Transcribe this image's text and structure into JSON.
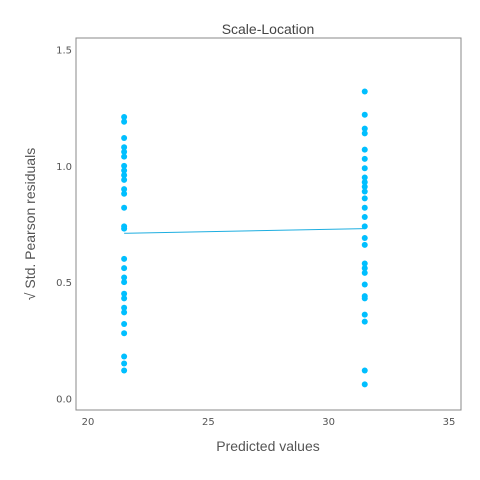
{
  "chart_data": {
    "type": "scatter",
    "title": "Scale-Location",
    "xlabel": "Predicted values",
    "ylabel": "√ Std. Pearson residuals",
    "xlim": [
      19.5,
      35.5
    ],
    "ylim": [
      -0.05,
      1.55
    ],
    "x_ticks": [
      20,
      25,
      30,
      35
    ],
    "x_tick_labels": [
      "20",
      "25",
      "30",
      "35"
    ],
    "y_ticks": [
      0.0,
      0.5,
      1.0,
      1.5
    ],
    "y_tick_labels": [
      "0.0",
      "0.5",
      "1.0",
      "1.5"
    ],
    "grid": false,
    "point_color": "#00BFFF",
    "line_color": "#1EAEE0",
    "series": [
      {
        "points": [
          [
            21.5,
            1.21
          ],
          [
            21.5,
            1.19
          ],
          [
            21.5,
            1.12
          ],
          [
            21.5,
            1.08
          ],
          [
            21.5,
            1.06
          ],
          [
            21.5,
            1.04
          ],
          [
            21.5,
            1.0
          ],
          [
            21.5,
            0.98
          ],
          [
            21.5,
            0.96
          ],
          [
            21.5,
            0.94
          ],
          [
            21.5,
            0.9
          ],
          [
            21.5,
            0.88
          ],
          [
            21.5,
            0.82
          ],
          [
            21.5,
            0.74
          ],
          [
            21.5,
            0.73
          ],
          [
            21.5,
            0.6
          ],
          [
            21.5,
            0.56
          ],
          [
            21.5,
            0.52
          ],
          [
            21.5,
            0.5
          ],
          [
            21.5,
            0.45
          ],
          [
            21.5,
            0.43
          ],
          [
            21.5,
            0.39
          ],
          [
            21.5,
            0.37
          ],
          [
            21.5,
            0.32
          ],
          [
            21.5,
            0.28
          ],
          [
            21.5,
            0.18
          ],
          [
            21.5,
            0.15
          ],
          [
            21.5,
            0.12
          ],
          [
            31.5,
            1.32
          ],
          [
            31.5,
            1.22
          ],
          [
            31.5,
            1.16
          ],
          [
            31.5,
            1.14
          ],
          [
            31.5,
            1.07
          ],
          [
            31.5,
            1.03
          ],
          [
            31.5,
            0.99
          ],
          [
            31.5,
            0.95
          ],
          [
            31.5,
            0.93
          ],
          [
            31.5,
            0.91
          ],
          [
            31.5,
            0.89
          ],
          [
            31.5,
            0.86
          ],
          [
            31.5,
            0.82
          ],
          [
            31.5,
            0.78
          ],
          [
            31.5,
            0.74
          ],
          [
            31.5,
            0.69
          ],
          [
            31.5,
            0.66
          ],
          [
            31.5,
            0.58
          ],
          [
            31.5,
            0.56
          ],
          [
            31.5,
            0.54
          ],
          [
            31.5,
            0.49
          ],
          [
            31.5,
            0.44
          ],
          [
            31.5,
            0.43
          ],
          [
            31.5,
            0.36
          ],
          [
            31.5,
            0.33
          ],
          [
            31.5,
            0.12
          ],
          [
            31.5,
            0.06
          ]
        ]
      }
    ],
    "trend_line": [
      [
        21.5,
        0.71
      ],
      [
        31.5,
        0.73
      ]
    ]
  }
}
